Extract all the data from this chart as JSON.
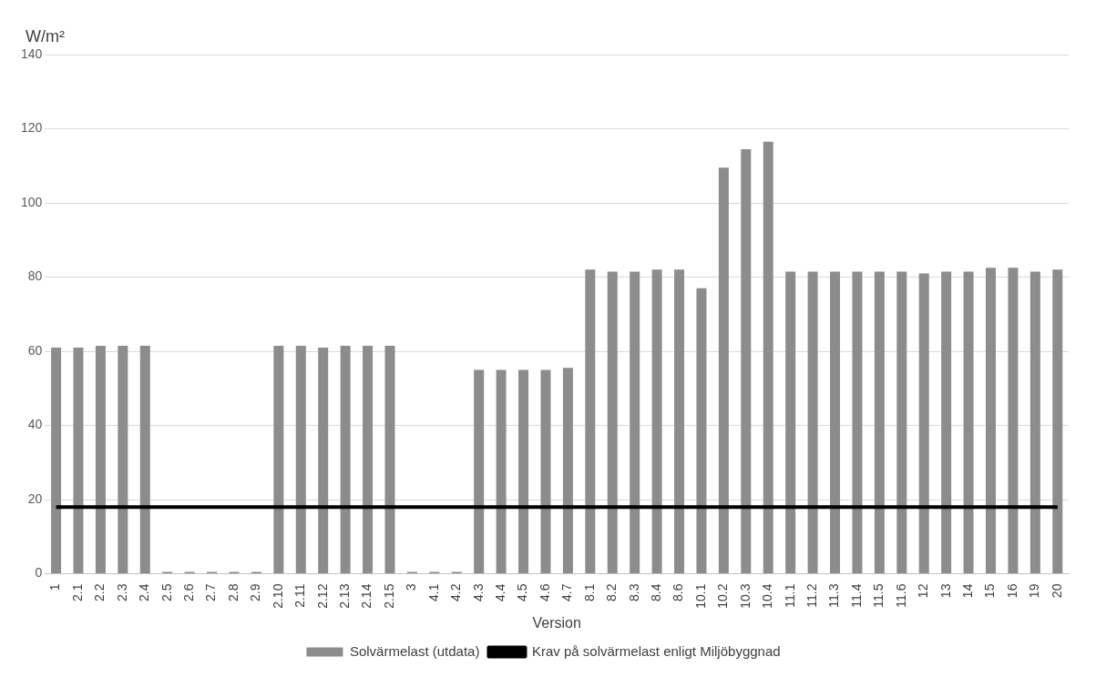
{
  "chart_data": {
    "type": "bar",
    "xlabel": "Version",
    "ylabel": "W/m²",
    "categories": [
      "1",
      "2.1",
      "2.2",
      "2.3",
      "2.4",
      "2.5",
      "2.6",
      "2.7",
      "2.8",
      "2.9",
      "2.10",
      "2.11",
      "2.12",
      "2.13",
      "2.14",
      "2.15",
      "3",
      "4.1",
      "4.2",
      "4.3",
      "4.4",
      "4.5",
      "4.6",
      "4.7",
      "8.1",
      "8.2",
      "8.3",
      "8.4",
      "8.6",
      "10.1",
      "10.2",
      "10.3",
      "10.4",
      "11.1",
      "11.2",
      "11.3",
      "11.4",
      "11.5",
      "11.6",
      "12",
      "13",
      "14",
      "15",
      "16",
      "19",
      "20"
    ],
    "series": [
      {
        "name": "Solvärmelast (utdata)",
        "color": "#8c8c8c",
        "values": [
          61,
          61,
          61.5,
          61.5,
          61.5,
          0.5,
          0.5,
          0.5,
          0.5,
          0.5,
          61.5,
          61.5,
          61,
          61.5,
          61.5,
          61.5,
          0.5,
          0.5,
          0.5,
          55,
          55,
          55,
          55,
          55.5,
          82,
          81.5,
          81.5,
          82,
          82,
          77,
          109.5,
          114.5,
          116.5,
          81.5,
          81.5,
          81.5,
          81.5,
          81.5,
          81.5,
          81,
          81.5,
          81.5,
          82.5,
          82.5,
          81.5,
          82
        ]
      },
      {
        "name": "Krav på solvärmelast enligt Miljöbyggnad",
        "type": "line",
        "color": "#000000",
        "values": [
          18,
          18,
          18,
          18,
          18,
          18,
          18,
          18,
          18,
          18,
          18,
          18,
          18,
          18,
          18,
          18,
          18,
          18,
          18,
          18,
          18,
          18,
          18,
          18,
          18,
          18,
          18,
          18,
          18,
          18,
          18,
          18,
          18,
          18,
          18,
          18,
          18,
          18,
          18,
          18,
          18,
          18,
          18,
          18,
          18,
          18
        ]
      }
    ],
    "line_style": "solid",
    "ylim": [
      0,
      140
    ],
    "yticks": [
      0,
      20,
      40,
      60,
      80,
      100,
      120,
      140
    ],
    "grid": "y",
    "legend": "bottom"
  }
}
